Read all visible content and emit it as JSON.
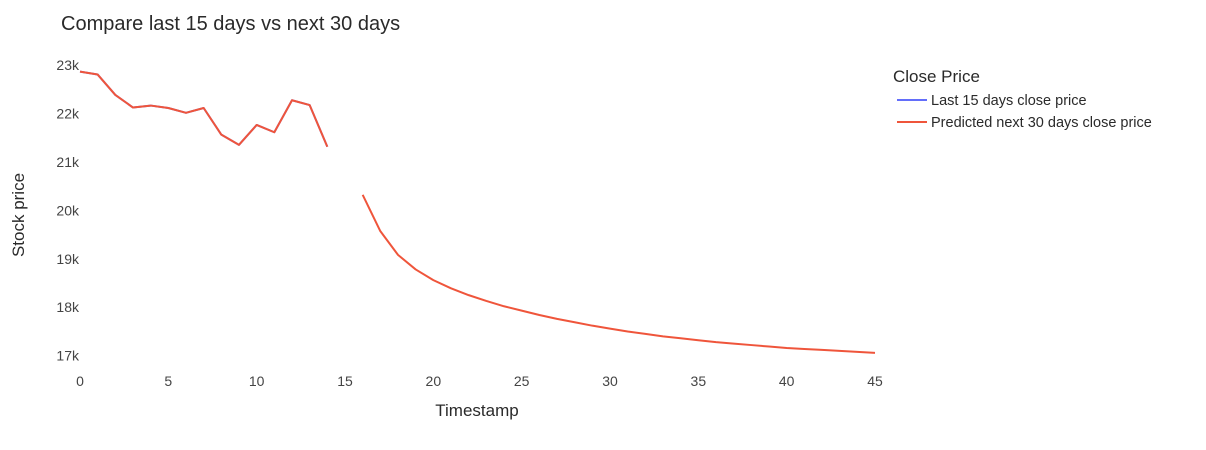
{
  "chart_data": {
    "type": "line",
    "title": "Compare last 15 days vs next 30 days",
    "xlabel": "Timestamp",
    "ylabel": "Stock price",
    "xlim": [
      0,
      45
    ],
    "ylim": [
      16850,
      23100
    ],
    "x_ticks": [
      0,
      5,
      10,
      15,
      20,
      25,
      30,
      35,
      40,
      45
    ],
    "x_tick_labels": [
      "0",
      "5",
      "10",
      "15",
      "20",
      "25",
      "30",
      "35",
      "40",
      "45"
    ],
    "y_ticks": [
      17000,
      18000,
      19000,
      20000,
      21000,
      22000,
      23000
    ],
    "y_tick_labels": [
      "17k",
      "18k",
      "19k",
      "20k",
      "21k",
      "22k",
      "23k"
    ],
    "grid": false,
    "legend": {
      "title": "Close Price",
      "position": "top-right"
    },
    "series": [
      {
        "name": "Last 15 days close price",
        "color": "#636efa",
        "x": [
          0,
          1,
          2,
          3,
          4,
          5,
          6,
          7,
          8,
          9,
          10,
          11,
          12,
          13,
          14
        ],
        "y": [
          22860,
          22800,
          22380,
          22120,
          22160,
          22110,
          22010,
          22110,
          21560,
          21350,
          21760,
          21610,
          22270,
          22170,
          21310
        ]
      },
      {
        "name": "Predicted next 30 days close price",
        "color": "#ef553b",
        "x": [
          0,
          1,
          2,
          3,
          4,
          5,
          6,
          7,
          8,
          9,
          10,
          11,
          12,
          13,
          14,
          15,
          16,
          17,
          18,
          19,
          20,
          21,
          22,
          23,
          24,
          25,
          26,
          27,
          28,
          29,
          30,
          31,
          32,
          33,
          34,
          35,
          36,
          37,
          38,
          39,
          40,
          41,
          42,
          43,
          44,
          45
        ],
        "y": [
          22860,
          22800,
          22380,
          22120,
          22160,
          22110,
          22010,
          22110,
          21560,
          21350,
          21760,
          21610,
          22270,
          22170,
          21310,
          null,
          20320,
          19570,
          19080,
          18780,
          18560,
          18390,
          18250,
          18130,
          18020,
          17930,
          17840,
          17760,
          17690,
          17620,
          17560,
          17500,
          17450,
          17400,
          17360,
          17320,
          17280,
          17250,
          17220,
          17190,
          17160,
          17140,
          17120,
          17100,
          17080,
          17060
        ]
      }
    ]
  }
}
